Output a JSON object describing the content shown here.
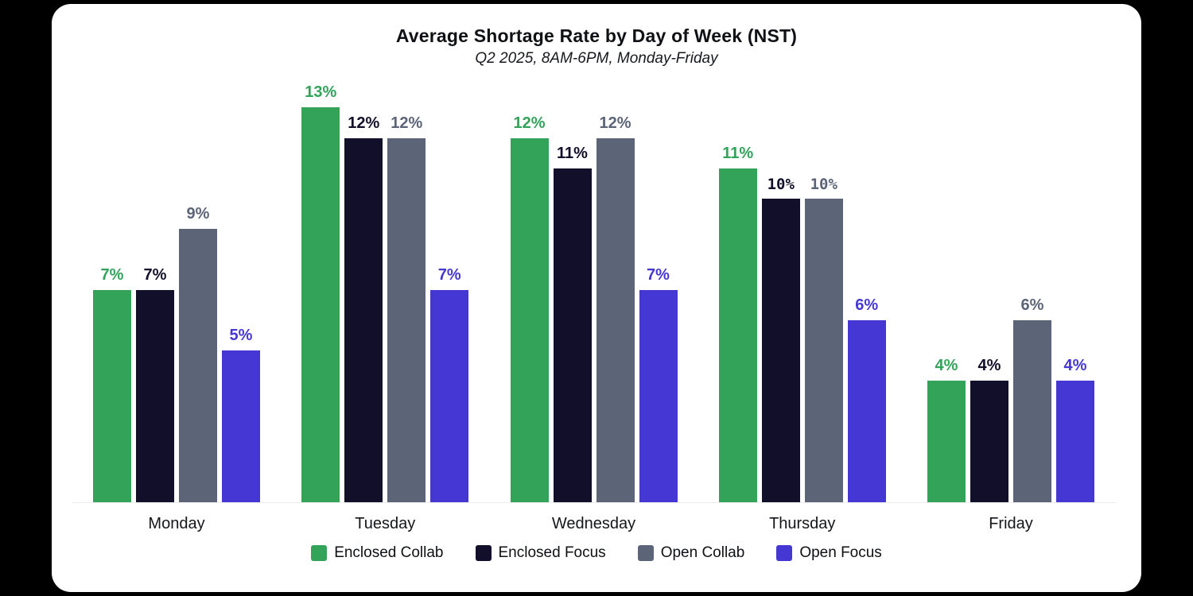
{
  "chart": {
    "title": "Average Shortage Rate by Day of Week (NST)",
    "subtitle": "Q2 2025, 8AM-6PM, Monday-Friday"
  },
  "chart_data": {
    "type": "bar",
    "title": "Average Shortage Rate by Day of Week (NST)",
    "subtitle": "Q2 2025, 8AM-6PM, Monday-Friday",
    "categories": [
      "Monday",
      "Tuesday",
      "Wednesday",
      "Thursday",
      "Friday"
    ],
    "series": [
      {
        "name": "Enclosed Collab",
        "color": "#33A35A",
        "values": [
          7,
          13,
          12,
          11,
          4
        ],
        "value_labels": [
          "7%",
          "13%",
          "12%",
          "11%",
          "4%"
        ]
      },
      {
        "name": "Enclosed Focus",
        "color": "#120F2A",
        "values": [
          7,
          12,
          11,
          10,
          4
        ],
        "value_labels": [
          "7%",
          "12%",
          "11%",
          "10%",
          "4%"
        ]
      },
      {
        "name": "Open Collab",
        "color": "#5C6478",
        "values": [
          9,
          12,
          12,
          10,
          6
        ],
        "value_labels": [
          "9%",
          "12%",
          "12%",
          "10%",
          "6%"
        ]
      },
      {
        "name": "Open Focus",
        "color": "#4437D4",
        "values": [
          5,
          7,
          7,
          6,
          4
        ],
        "value_labels": [
          "5%",
          "7%",
          "7%",
          "6%",
          "4%"
        ]
      }
    ],
    "value_suffix": "%",
    "xlabel": "",
    "ylabel": "",
    "ylim": [
      0,
      14
    ],
    "grid": false,
    "y_axis_shown": false,
    "legend_position": "bottom",
    "legend": [
      "Enclosed Collab",
      "Enclosed Focus",
      "Open Collab",
      "Open Focus"
    ],
    "baseline_color": "#ECECEC",
    "card_background": "#FFFFFF"
  }
}
